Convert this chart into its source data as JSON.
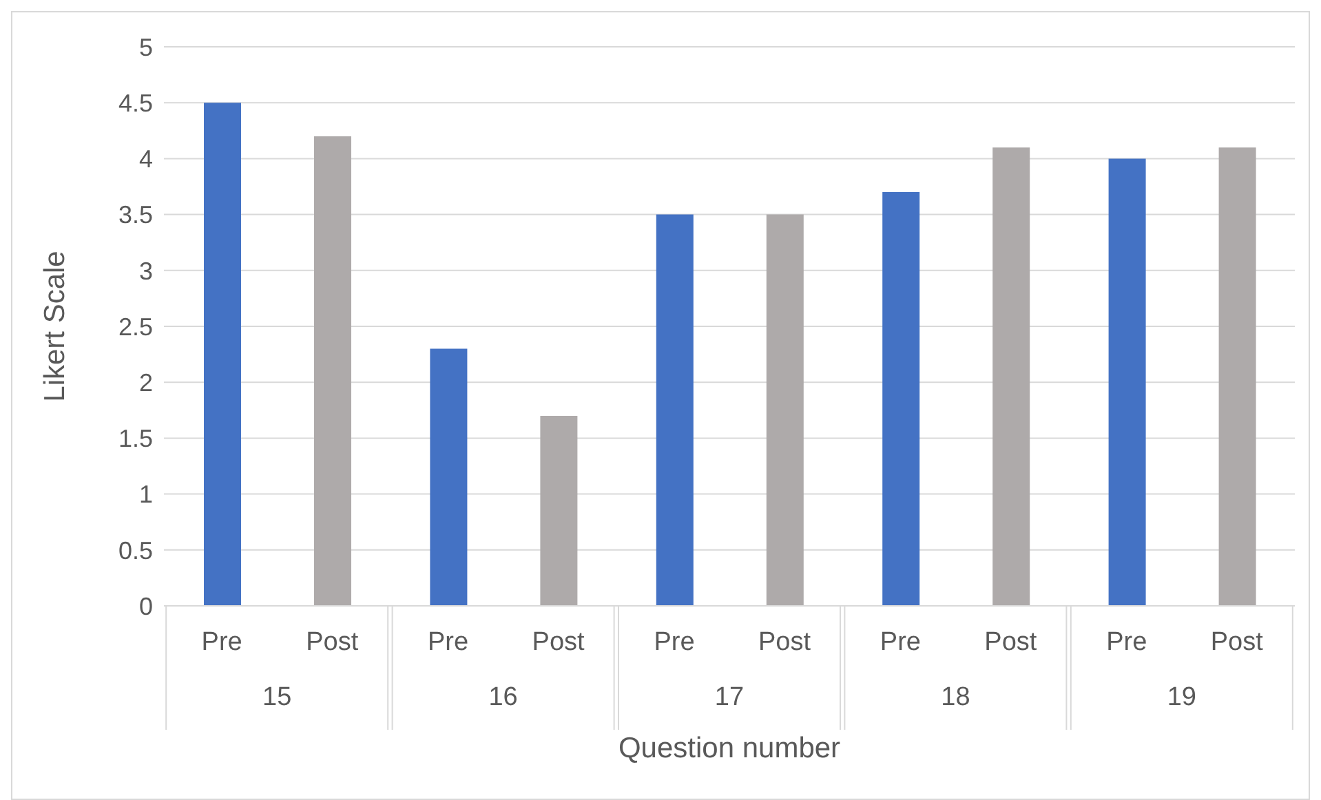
{
  "chart_data": {
    "type": "bar",
    "categories": [
      "15",
      "16",
      "17",
      "18",
      "19"
    ],
    "series": [
      {
        "name": "Pre",
        "color": "#4472c4",
        "values": [
          4.5,
          2.3,
          3.5,
          3.7,
          4.0
        ]
      },
      {
        "name": "Post",
        "color": "#aeaaaa",
        "values": [
          4.2,
          1.7,
          3.5,
          4.1,
          4.1
        ]
      }
    ],
    "xlabel": "Question number",
    "ylabel": "Likert Scale",
    "ylim": [
      0,
      5
    ],
    "yticks": [
      0,
      0.5,
      1,
      1.5,
      2,
      2.5,
      3,
      3.5,
      4,
      4.5,
      5
    ],
    "grid": "y",
    "legend": false
  }
}
